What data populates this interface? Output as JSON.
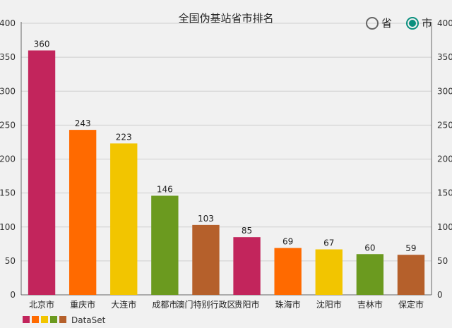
{
  "chart_data": {
    "type": "bar",
    "title": "全国伪基站省市排名",
    "categories": [
      "北京市",
      "重庆市",
      "大连市",
      "成都市",
      "澳门特别行政区",
      "贵阳市",
      "珠海市",
      "沈阳市",
      "吉林市",
      "保定市"
    ],
    "values": [
      360,
      243,
      223,
      146,
      103,
      85,
      69,
      67,
      60,
      59
    ],
    "colors": [
      "#c2255c",
      "#ff6a00",
      "#f2c500",
      "#6b9a1f",
      "#b5602b",
      "#c2255c",
      "#ff6a00",
      "#f2c500",
      "#6b9a1f",
      "#b5602b"
    ],
    "ylim": [
      0,
      400
    ],
    "yticks": [
      0,
      50,
      100,
      150,
      200,
      250,
      300,
      350,
      400
    ],
    "grid": true,
    "xlabel": "",
    "ylabel": "",
    "legend": {
      "label": "DataSet",
      "position": "bottom-left",
      "swatches": [
        "#c2255c",
        "#ff6a00",
        "#f2c500",
        "#6b9a1f",
        "#b5602b"
      ]
    }
  },
  "toggle": {
    "options": [
      {
        "label": "省",
        "checked": false
      },
      {
        "label": "市",
        "checked": true
      }
    ]
  }
}
